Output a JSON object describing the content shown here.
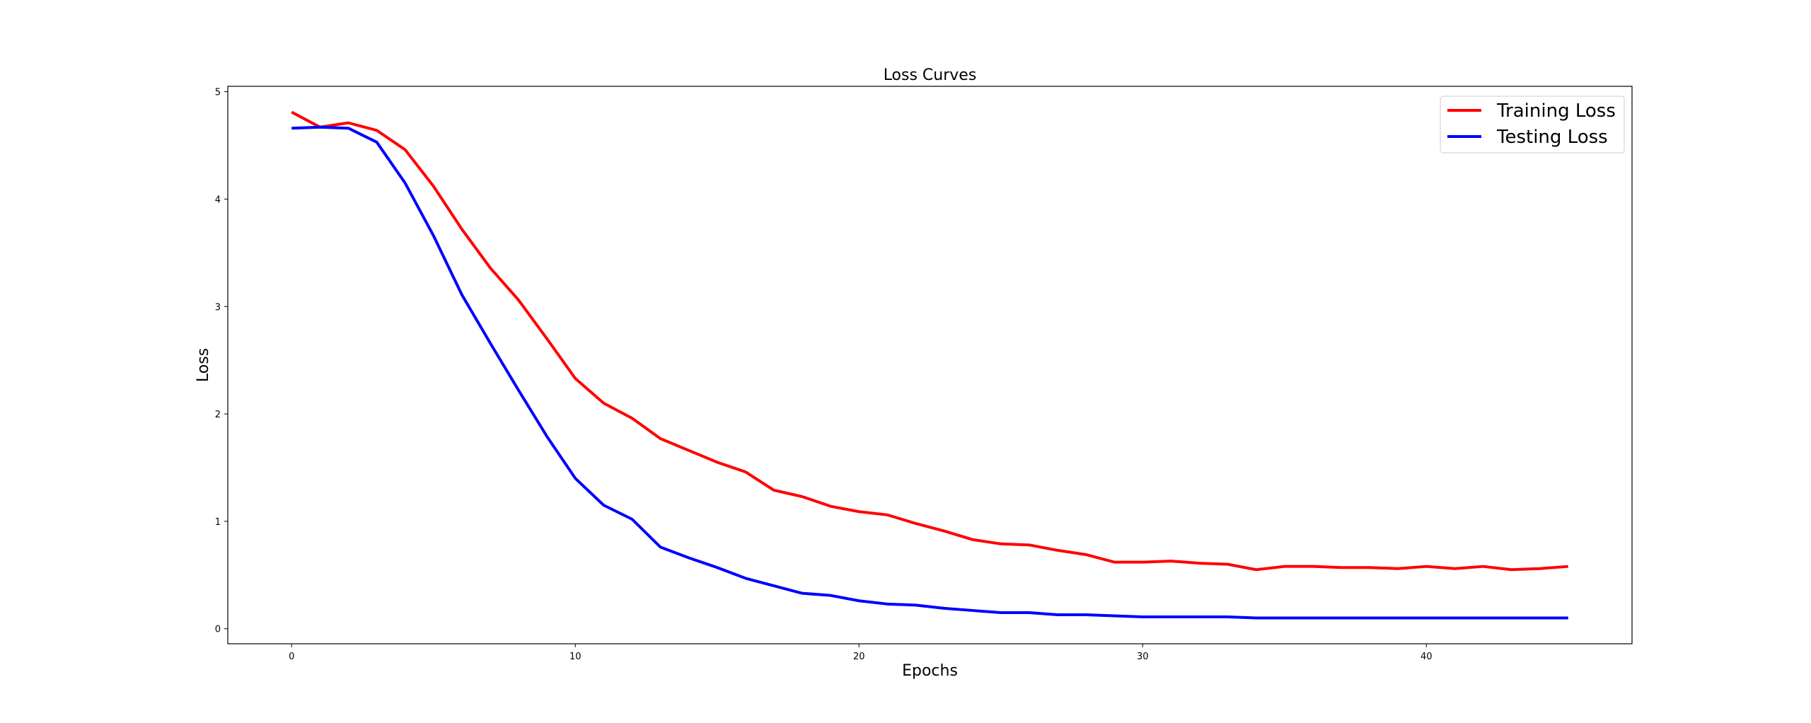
{
  "chart_data": {
    "type": "line",
    "title": "Loss Curves",
    "xlabel": "Epochs",
    "ylabel": "Loss",
    "xlim": [
      -2.25,
      47.25
    ],
    "ylim": [
      -0.14,
      5.05
    ],
    "xticks": [
      0,
      10,
      20,
      30,
      40
    ],
    "yticks": [
      0,
      1,
      2,
      3,
      4,
      5
    ],
    "grid": false,
    "legend_position": "top-right",
    "x": [
      0,
      1,
      2,
      3,
      4,
      5,
      6,
      7,
      8,
      9,
      10,
      11,
      12,
      13,
      14,
      15,
      16,
      17,
      18,
      19,
      20,
      21,
      22,
      23,
      24,
      25,
      26,
      27,
      28,
      29,
      30,
      31,
      32,
      33,
      34,
      35,
      36,
      37,
      38,
      39,
      40,
      41,
      42,
      43,
      44,
      45
    ],
    "series": [
      {
        "name": "Training Loss",
        "color": "#ff0000",
        "values": [
          4.81,
          4.67,
          4.71,
          4.64,
          4.46,
          4.12,
          3.72,
          3.36,
          3.06,
          2.7,
          2.33,
          2.1,
          1.96,
          1.77,
          1.66,
          1.55,
          1.46,
          1.29,
          1.23,
          1.14,
          1.09,
          1.06,
          0.98,
          0.91,
          0.83,
          0.79,
          0.78,
          0.73,
          0.69,
          0.62,
          0.62,
          0.63,
          0.61,
          0.6,
          0.55,
          0.58,
          0.58,
          0.57,
          0.57,
          0.56,
          0.58,
          0.56,
          0.58,
          0.55,
          0.56,
          0.58
        ]
      },
      {
        "name": "Testing Loss",
        "color": "#0000ff",
        "values": [
          4.66,
          4.67,
          4.66,
          4.53,
          4.15,
          3.66,
          3.11,
          2.66,
          2.22,
          1.79,
          1.4,
          1.15,
          1.02,
          0.76,
          0.66,
          0.57,
          0.47,
          0.4,
          0.33,
          0.31,
          0.26,
          0.23,
          0.22,
          0.19,
          0.17,
          0.15,
          0.15,
          0.13,
          0.13,
          0.12,
          0.11,
          0.11,
          0.11,
          0.11,
          0.1,
          0.1,
          0.1,
          0.1,
          0.1,
          0.1,
          0.1,
          0.1,
          0.1,
          0.1,
          0.1,
          0.1
        ]
      }
    ]
  }
}
